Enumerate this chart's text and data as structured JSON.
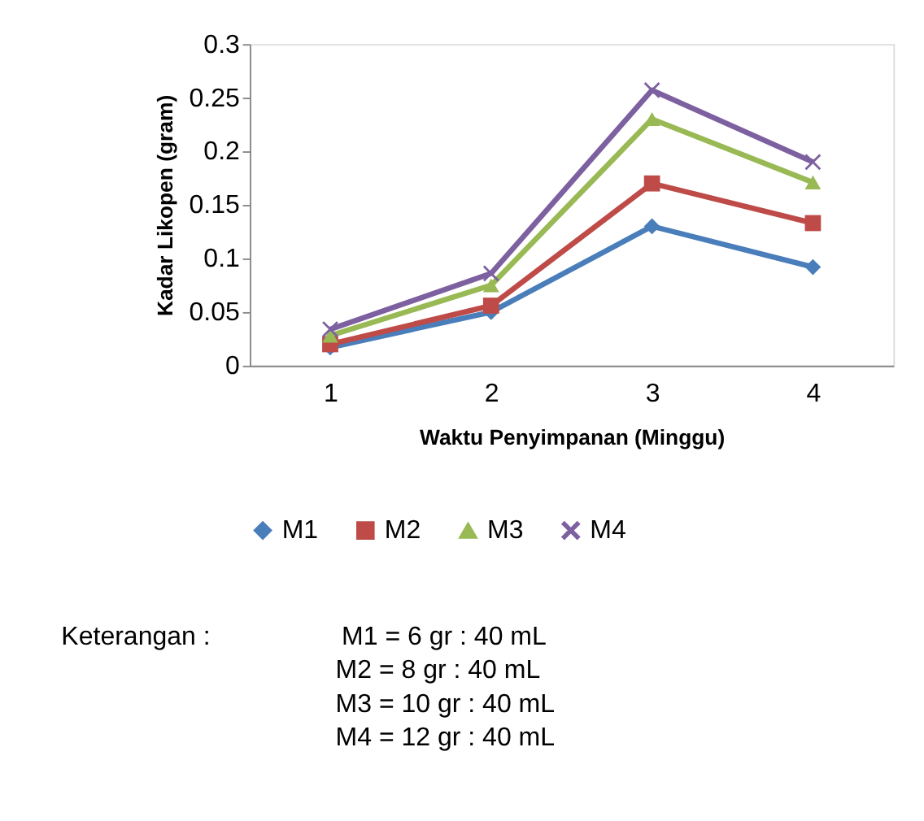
{
  "chart_data": {
    "type": "line",
    "xlabel": "Waktu Penyimpanan (Minggu)",
    "ylabel": "Kadar Likopen (gram)",
    "categories": [
      "1",
      "2",
      "3",
      "4"
    ],
    "series": [
      {
        "name": "M1",
        "color": "#4a7ebb",
        "marker": "diamond",
        "values": [
          0.017,
          0.05,
          0.13,
          0.092
        ]
      },
      {
        "name": "M2",
        "color": "#be4b48",
        "marker": "square",
        "values": [
          0.02,
          0.056,
          0.17,
          0.133
        ]
      },
      {
        "name": "M3",
        "color": "#98b954",
        "marker": "triangle",
        "values": [
          0.028,
          0.075,
          0.23,
          0.171
        ]
      },
      {
        "name": "M4",
        "color": "#7d60a0",
        "marker": "cross",
        "values": [
          0.034,
          0.086,
          0.257,
          0.19
        ]
      }
    ],
    "ylim": [
      0,
      0.3
    ],
    "yticks": [
      0,
      0.05,
      0.1,
      0.15,
      0.2,
      0.25,
      0.3
    ],
    "grid": false,
    "legend": "bottom",
    "line_style": "solid",
    "annotations": [
      "Keterangan :",
      "M1 = 6 gr : 40 mL",
      "M2 = 8 gr : 40 mL",
      "M3 = 10 gr : 40 mL",
      "M4 = 12 gr : 40 mL"
    ]
  }
}
